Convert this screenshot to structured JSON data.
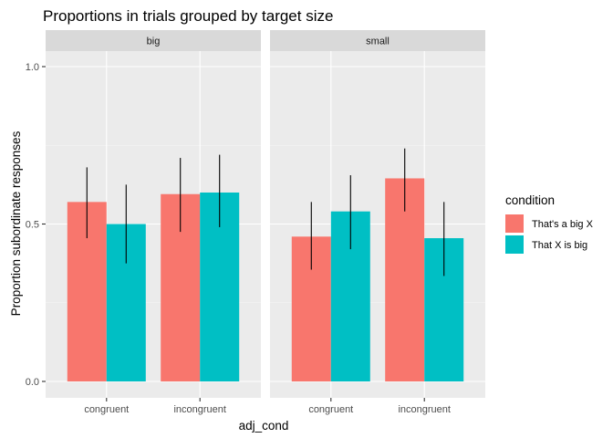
{
  "chart_data": {
    "type": "bar",
    "title": "Proportions in trials grouped by target size",
    "xlabel": "adj_cond",
    "ylabel": "Proportion subordinate responses",
    "ylim": [
      0,
      1.05
    ],
    "yticks": [
      "0.0",
      "0.5",
      "1.0"
    ],
    "categories": [
      "congruent",
      "incongruent"
    ],
    "facets": [
      "big",
      "small"
    ],
    "legend": {
      "title": "condition",
      "position": "right",
      "entries": [
        "That's a big X",
        "That X is big"
      ]
    },
    "colors": {
      "That's a big X": "#F8766D",
      "That X is big": "#00BFC4"
    },
    "grid": true,
    "panels": [
      {
        "facet": "big",
        "series": [
          {
            "name": "That's a big X",
            "values": [
              0.57,
              0.595
            ],
            "lower": [
              0.455,
              0.475
            ],
            "upper": [
              0.68,
              0.71
            ]
          },
          {
            "name": "That X is big",
            "values": [
              0.5,
              0.6
            ],
            "lower": [
              0.375,
              0.49
            ],
            "upper": [
              0.625,
              0.72
            ]
          }
        ]
      },
      {
        "facet": "small",
        "series": [
          {
            "name": "That's a big X",
            "values": [
              0.46,
              0.645
            ],
            "lower": [
              0.355,
              0.54
            ],
            "upper": [
              0.57,
              0.74
            ]
          },
          {
            "name": "That X is big",
            "values": [
              0.54,
              0.455
            ],
            "lower": [
              0.42,
              0.335
            ],
            "upper": [
              0.655,
              0.57
            ]
          }
        ]
      }
    ]
  }
}
